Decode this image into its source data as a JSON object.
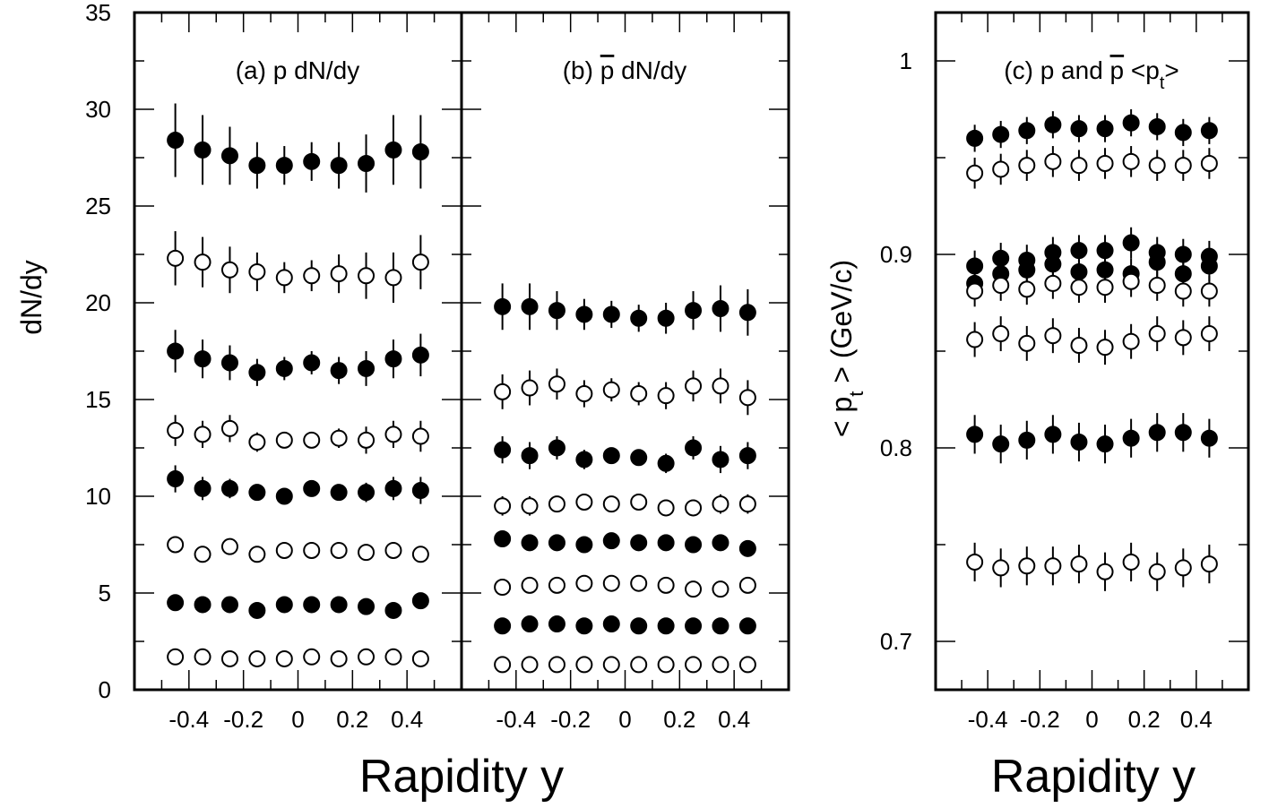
{
  "chart_data": [
    {
      "id": "a",
      "type": "scatter",
      "label": {
        "pre": "(a) ",
        "particle": "p",
        "bar": false,
        "post": " dN/dy"
      },
      "ylabel": "dN/dy",
      "ylim": [
        0,
        35
      ],
      "yticks": [
        0,
        5,
        10,
        15,
        20,
        25,
        30,
        35
      ],
      "xlim": [
        -0.6,
        0.6
      ],
      "xticks": [
        -0.4,
        -0.2,
        0,
        0.2,
        0.4
      ],
      "xtick_labels": [
        "-0.4",
        "-0.2",
        "0",
        "0.2",
        "0.4"
      ],
      "zero_line": true,
      "x": [
        -0.45,
        -0.35,
        -0.25,
        -0.15,
        -0.05,
        0.05,
        0.15,
        0.25,
        0.35,
        0.45
      ],
      "series": [
        {
          "filled": true,
          "values": [
            28.4,
            27.9,
            27.6,
            27.1,
            27.1,
            27.3,
            27.1,
            27.2,
            27.9,
            27.8
          ],
          "errors": [
            1.9,
            1.8,
            1.5,
            1.2,
            1.0,
            1.0,
            1.2,
            1.5,
            1.8,
            1.9
          ]
        },
        {
          "filled": false,
          "values": [
            22.3,
            22.1,
            21.7,
            21.6,
            21.3,
            21.4,
            21.5,
            21.4,
            21.3,
            22.1
          ],
          "errors": [
            1.4,
            1.3,
            1.2,
            1.0,
            0.8,
            0.8,
            1.0,
            1.2,
            1.3,
            1.4
          ]
        },
        {
          "filled": true,
          "values": [
            17.5,
            17.1,
            16.9,
            16.4,
            16.6,
            16.9,
            16.5,
            16.6,
            17.1,
            17.3
          ],
          "errors": [
            1.1,
            1.0,
            0.9,
            0.7,
            0.6,
            0.6,
            0.7,
            0.9,
            1.0,
            1.1
          ]
        },
        {
          "filled": false,
          "values": [
            13.4,
            13.2,
            13.5,
            12.8,
            12.9,
            12.9,
            13.0,
            12.9,
            13.2,
            13.1
          ],
          "errors": [
            0.8,
            0.7,
            0.7,
            0.5,
            0.4,
            0.4,
            0.5,
            0.7,
            0.7,
            0.8
          ]
        },
        {
          "filled": true,
          "values": [
            10.9,
            10.4,
            10.4,
            10.2,
            10.0,
            10.4,
            10.2,
            10.2,
            10.4,
            10.3
          ],
          "errors": [
            0.7,
            0.6,
            0.5,
            0.4,
            0.3,
            0.3,
            0.4,
            0.5,
            0.6,
            0.7
          ]
        },
        {
          "filled": false,
          "values": [
            7.5,
            7.0,
            7.4,
            7.0,
            7.2,
            7.2,
            7.2,
            7.1,
            7.2,
            7.0
          ],
          "errors": [
            0.2,
            0.2,
            0.2,
            0.2,
            0.2,
            0.2,
            0.2,
            0.2,
            0.2,
            0.2
          ]
        },
        {
          "filled": true,
          "values": [
            4.5,
            4.4,
            4.4,
            4.1,
            4.4,
            4.4,
            4.4,
            4.3,
            4.1,
            4.6
          ],
          "errors": [
            0.1,
            0.1,
            0.1,
            0.1,
            0.1,
            0.1,
            0.1,
            0.1,
            0.1,
            0.1
          ]
        },
        {
          "filled": false,
          "values": [
            1.7,
            1.7,
            1.6,
            1.6,
            1.6,
            1.7,
            1.6,
            1.7,
            1.7,
            1.6
          ],
          "errors": [
            0.1,
            0.1,
            0.1,
            0.1,
            0.1,
            0.1,
            0.1,
            0.1,
            0.1,
            0.1
          ]
        }
      ]
    },
    {
      "id": "b",
      "type": "scatter",
      "label": {
        "pre": "(b) ",
        "particle": "p",
        "bar": true,
        "post": " dN/dy"
      },
      "ylabel": "",
      "ylim": [
        0,
        35
      ],
      "yticks": [
        0,
        5,
        10,
        15,
        20,
        25,
        30,
        35
      ],
      "xlim": [
        -0.6,
        0.6
      ],
      "xticks": [
        -0.4,
        -0.2,
        0,
        0.2,
        0.4
      ],
      "xtick_labels": [
        "-0.4",
        "-0.2",
        "0",
        "0.2",
        "0.4"
      ],
      "zero_line": true,
      "x": [
        -0.45,
        -0.35,
        -0.25,
        -0.15,
        -0.05,
        0.05,
        0.15,
        0.25,
        0.35,
        0.45
      ],
      "series": [
        {
          "filled": true,
          "values": [
            19.8,
            19.8,
            19.6,
            19.4,
            19.4,
            19.2,
            19.2,
            19.6,
            19.7,
            19.5
          ],
          "errors": [
            1.2,
            1.2,
            1.0,
            0.8,
            0.7,
            0.7,
            0.8,
            1.0,
            1.2,
            1.2
          ]
        },
        {
          "filled": false,
          "values": [
            15.4,
            15.6,
            15.8,
            15.3,
            15.5,
            15.3,
            15.2,
            15.7,
            15.7,
            15.1
          ],
          "errors": [
            0.9,
            0.9,
            0.8,
            0.7,
            0.6,
            0.6,
            0.7,
            0.8,
            0.9,
            0.9
          ]
        },
        {
          "filled": true,
          "values": [
            12.4,
            12.1,
            12.5,
            11.9,
            12.1,
            12.0,
            11.7,
            12.5,
            11.9,
            12.1
          ],
          "errors": [
            0.7,
            0.7,
            0.6,
            0.5,
            0.4,
            0.4,
            0.5,
            0.6,
            0.7,
            0.7
          ]
        },
        {
          "filled": false,
          "values": [
            9.5,
            9.5,
            9.6,
            9.7,
            9.6,
            9.7,
            9.4,
            9.4,
            9.6,
            9.6
          ],
          "errors": [
            0.5,
            0.5,
            0.4,
            0.3,
            0.3,
            0.3,
            0.3,
            0.4,
            0.5,
            0.5
          ]
        },
        {
          "filled": true,
          "values": [
            7.8,
            7.6,
            7.6,
            7.5,
            7.7,
            7.6,
            7.6,
            7.5,
            7.6,
            7.3
          ],
          "errors": [
            0.3,
            0.3,
            0.3,
            0.2,
            0.2,
            0.2,
            0.2,
            0.3,
            0.3,
            0.3
          ]
        },
        {
          "filled": false,
          "values": [
            5.3,
            5.4,
            5.4,
            5.5,
            5.5,
            5.5,
            5.4,
            5.2,
            5.2,
            5.4
          ],
          "errors": [
            0.2,
            0.2,
            0.2,
            0.2,
            0.2,
            0.2,
            0.2,
            0.2,
            0.2,
            0.2
          ]
        },
        {
          "filled": true,
          "values": [
            3.3,
            3.4,
            3.4,
            3.3,
            3.4,
            3.3,
            3.3,
            3.3,
            3.3,
            3.3
          ],
          "errors": [
            0.1,
            0.1,
            0.1,
            0.1,
            0.1,
            0.1,
            0.1,
            0.1,
            0.1,
            0.1
          ]
        },
        {
          "filled": false,
          "values": [
            1.3,
            1.3,
            1.3,
            1.3,
            1.3,
            1.3,
            1.3,
            1.3,
            1.3,
            1.3
          ],
          "errors": [
            0.05,
            0.05,
            0.05,
            0.05,
            0.05,
            0.05,
            0.05,
            0.05,
            0.05,
            0.05
          ]
        }
      ]
    },
    {
      "id": "c",
      "type": "scatter",
      "label": {
        "pre": "(c) ",
        "particle": "p",
        "bar": false,
        "mid": " and ",
        "particle2": "p",
        "bar2": true,
        "post": " <p",
        "sub": "t",
        "post2": ">"
      },
      "ylabel": {
        "pre": "< p",
        "sub": "t",
        "post": " > (GeV/c)"
      },
      "ylim": [
        0.675,
        1.025
      ],
      "yticks": [
        0.7,
        0.8,
        0.9,
        1.0
      ],
      "ytick_labels": [
        "0.7",
        "0.8",
        "0.9",
        "1"
      ],
      "xlim": [
        -0.6,
        0.6
      ],
      "xticks": [
        -0.4,
        -0.2,
        0,
        0.2,
        0.4
      ],
      "xtick_labels": [
        "-0.4",
        "-0.2",
        "0",
        "0.2",
        "0.4"
      ],
      "zero_line": false,
      "x": [
        -0.45,
        -0.35,
        -0.25,
        -0.15,
        -0.05,
        0.05,
        0.15,
        0.25,
        0.35,
        0.45
      ],
      "series": [
        {
          "filled": true,
          "values": [
            0.96,
            0.962,
            0.964,
            0.967,
            0.965,
            0.965,
            0.968,
            0.966,
            0.963,
            0.964
          ],
          "errors": [
            0.007,
            0.007,
            0.007,
            0.007,
            0.007,
            0.007,
            0.007,
            0.007,
            0.007,
            0.007
          ]
        },
        {
          "filled": false,
          "values": [
            0.942,
            0.944,
            0.946,
            0.948,
            0.946,
            0.947,
            0.948,
            0.946,
            0.946,
            0.947
          ],
          "errors": [
            0.008,
            0.008,
            0.008,
            0.008,
            0.008,
            0.008,
            0.008,
            0.008,
            0.008,
            0.008
          ]
        },
        {
          "filled": true,
          "values": [
            0.894,
            0.898,
            0.897,
            0.901,
            0.902,
            0.902,
            0.906,
            0.901,
            0.9,
            0.899
          ],
          "errors": [
            0.008,
            0.008,
            0.008,
            0.008,
            0.008,
            0.008,
            0.008,
            0.008,
            0.008,
            0.008
          ]
        },
        {
          "filled": true,
          "values": [
            0.885,
            0.89,
            0.892,
            0.895,
            0.891,
            0.892,
            0.89,
            0.896,
            0.89,
            0.894
          ],
          "errors": [
            0.008,
            0.008,
            0.008,
            0.008,
            0.008,
            0.008,
            0.008,
            0.008,
            0.008,
            0.008
          ]
        },
        {
          "filled": false,
          "values": [
            0.881,
            0.884,
            0.882,
            0.885,
            0.883,
            0.883,
            0.886,
            0.884,
            0.881,
            0.881
          ],
          "errors": [
            0.008,
            0.008,
            0.008,
            0.008,
            0.008,
            0.008,
            0.008,
            0.008,
            0.008,
            0.008
          ]
        },
        {
          "filled": false,
          "values": [
            0.856,
            0.859,
            0.854,
            0.858,
            0.853,
            0.852,
            0.855,
            0.859,
            0.857,
            0.859
          ],
          "errors": [
            0.009,
            0.009,
            0.009,
            0.009,
            0.009,
            0.009,
            0.009,
            0.009,
            0.009,
            0.009
          ]
        },
        {
          "filled": true,
          "values": [
            0.807,
            0.802,
            0.804,
            0.807,
            0.803,
            0.802,
            0.805,
            0.808,
            0.808,
            0.805
          ],
          "errors": [
            0.01,
            0.01,
            0.01,
            0.01,
            0.01,
            0.01,
            0.01,
            0.01,
            0.01,
            0.01
          ]
        },
        {
          "filled": false,
          "values": [
            0.741,
            0.738,
            0.739,
            0.739,
            0.74,
            0.736,
            0.741,
            0.736,
            0.738,
            0.74
          ],
          "errors": [
            0.01,
            0.01,
            0.01,
            0.01,
            0.01,
            0.01,
            0.01,
            0.01,
            0.01,
            0.01
          ]
        }
      ]
    }
  ],
  "xlabels": [
    "Rapidity y",
    "Rapidity y"
  ]
}
